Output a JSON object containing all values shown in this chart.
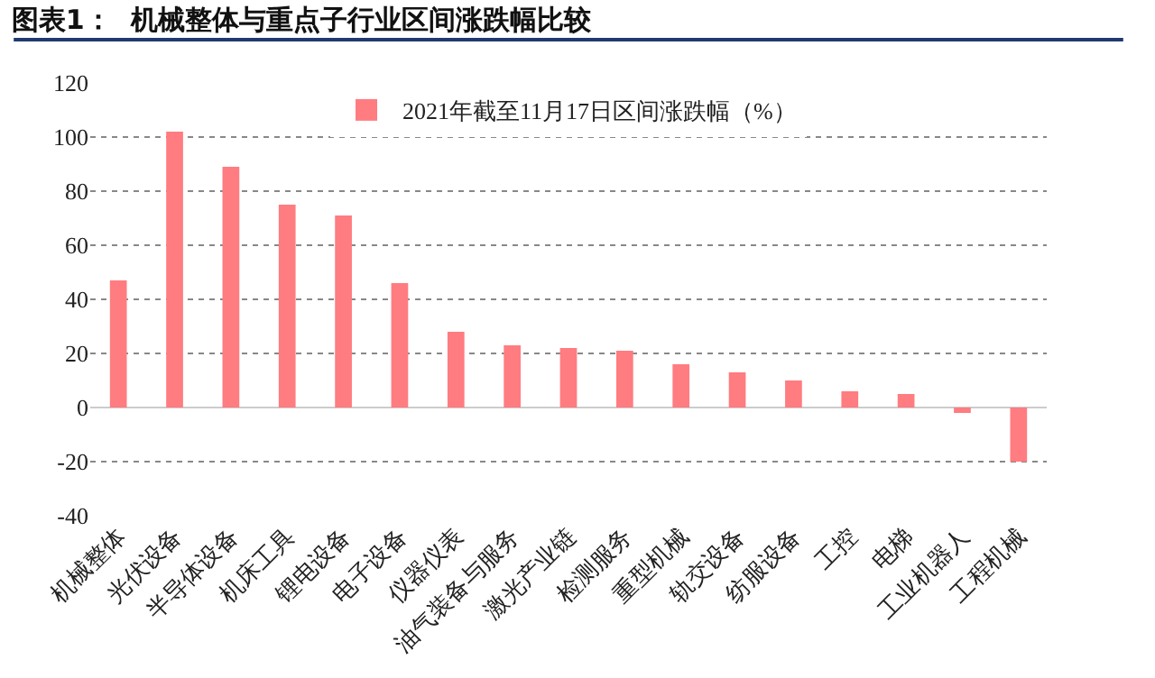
{
  "chart_data": {
    "type": "bar",
    "title": "图表1：  机械整体与重点子行业区间涨跌幅比较",
    "categories": [
      "机械整体",
      "光伏设备",
      "半导体设备",
      "机床工具",
      "锂电设备",
      "电子设备",
      "仪器仪表",
      "油气装备与服务",
      "激光产业链",
      "检测服务",
      "重型机械",
      "轨交设备",
      "纺服设备",
      "工控",
      "电梯",
      "工业机器人",
      "工程机械"
    ],
    "series": [
      {
        "name": "2021年截至11月17日区间涨跌幅（%）",
        "color": "#ff7c80",
        "values": [
          47,
          102,
          89,
          75,
          71,
          46,
          28,
          23,
          22,
          21,
          16,
          13,
          10,
          6,
          5,
          -2,
          -20
        ]
      }
    ],
    "ylim": [
      -40,
      120
    ],
    "yticks": [
      -40,
      -20,
      0,
      20,
      40,
      60,
      80,
      100,
      120
    ],
    "grid": "y",
    "legend": "top"
  }
}
